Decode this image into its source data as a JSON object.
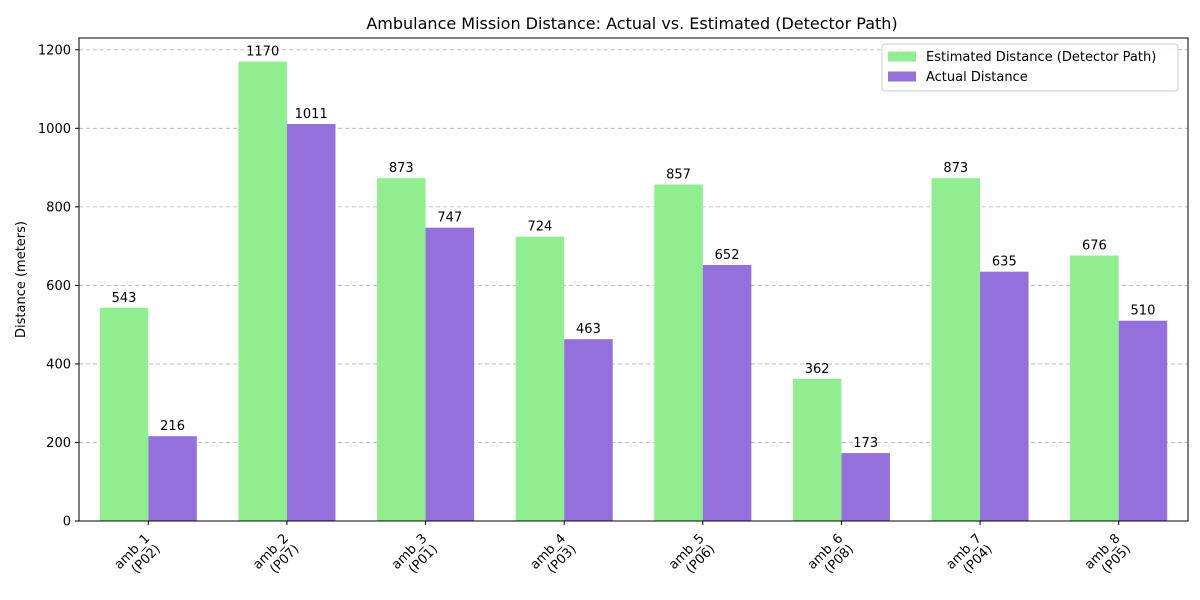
{
  "chart_data": {
    "type": "bar",
    "title": "Ambulance Mission Distance: Actual vs. Estimated (Detector Path)",
    "xlabel": "",
    "ylabel": "Distance (meters)",
    "ylim": [
      0,
      1230
    ],
    "yticks": [
      0,
      200,
      400,
      600,
      800,
      1000,
      1200
    ],
    "grid": "y, dashed",
    "legend_position": "top-right",
    "categories": [
      [
        "amb_1",
        "(P02)"
      ],
      [
        "amb_2",
        "(P07)"
      ],
      [
        "amb_3",
        "(P01)"
      ],
      [
        "amb_4",
        "(P03)"
      ],
      [
        "amb_5",
        "(P06)"
      ],
      [
        "amb_6",
        "(P08)"
      ],
      [
        "amb_7",
        "(P04)"
      ],
      [
        "amb_8",
        "(P05)"
      ]
    ],
    "series": [
      {
        "name": "Estimated Distance (Detector Path)",
        "color": "#90ee90",
        "values": [
          543,
          1170,
          873,
          724,
          857,
          362,
          873,
          676
        ]
      },
      {
        "name": "Actual Distance",
        "color": "#9370db",
        "values": [
          216,
          1011,
          747,
          463,
          652,
          173,
          635,
          510
        ]
      }
    ]
  }
}
